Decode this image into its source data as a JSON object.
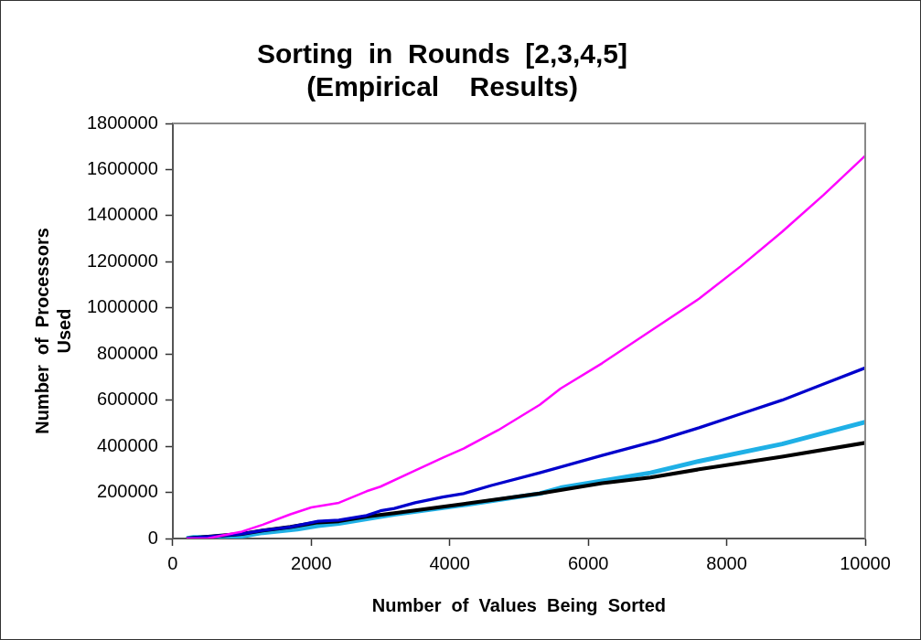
{
  "chart_data": {
    "type": "line",
    "title": [
      "Sorting  in  Rounds  [2,3,4,5]",
      "(Empirical    Results)"
    ],
    "xlabel": "Number  of  Values  Being  Sorted",
    "ylabel": [
      "Number  of  Processors",
      "Used"
    ],
    "xlim": [
      0,
      10000
    ],
    "xticks": [
      0,
      2000,
      4000,
      6000,
      8000,
      10000
    ],
    "ylim": [
      0,
      1800000
    ],
    "yticks": [
      0,
      200000,
      400000,
      600000,
      800000,
      1000000,
      1200000,
      1400000,
      1600000,
      1800000
    ],
    "grid": false,
    "legend": false,
    "marker": "none",
    "line_style": "solid",
    "series": [
      {
        "color": "#ff00ff",
        "x": [
          200,
          500,
          1000,
          1300,
          1700,
          2000,
          2400,
          2800,
          3000,
          3500,
          3900,
          4200,
          4700,
          5300,
          5600,
          6200,
          6900,
          7600,
          8200,
          8800,
          9400,
          10000
        ],
        "values": [
          0,
          0,
          30000,
          60000,
          105000,
          135000,
          155000,
          205000,
          225000,
          295000,
          350000,
          390000,
          470000,
          580000,
          650000,
          760000,
          900000,
          1040000,
          1180000,
          1330000,
          1490000,
          1660000
        ]
      },
      {
        "color": "#0000cc",
        "x": [
          200,
          1000,
          1300,
          1700,
          2100,
          2400,
          2800,
          3000,
          3200,
          3500,
          3900,
          4200,
          4600,
          5300,
          6200,
          7000,
          7600,
          8200,
          8800,
          9400,
          10000
        ],
        "values": [
          0,
          20000,
          35000,
          50000,
          75000,
          80000,
          100000,
          120000,
          130000,
          155000,
          180000,
          195000,
          230000,
          285000,
          360000,
          425000,
          480000,
          540000,
          600000,
          670000,
          740000
        ]
      },
      {
        "color": "#000000",
        "x": [
          200,
          1000,
          1300,
          1700,
          2100,
          2400,
          2800,
          3200,
          4200,
          5300,
          6200,
          6900,
          7600,
          8800,
          10000
        ],
        "values": [
          0,
          20000,
          35000,
          50000,
          70000,
          75000,
          95000,
          110000,
          150000,
          195000,
          240000,
          265000,
          300000,
          355000,
          415000
        ]
      },
      {
        "color": "#1fb0e6",
        "x": [
          200,
          300,
          500,
          1000,
          1300,
          1800,
          2100,
          2400,
          2800,
          3200,
          4200,
          5300,
          5600,
          6200,
          6900,
          7600,
          8800,
          10000
        ],
        "values": [
          0,
          5000,
          5000,
          10000,
          25000,
          40000,
          55000,
          65000,
          85000,
          105000,
          145000,
          195000,
          220000,
          250000,
          285000,
          335000,
          410000,
          505000
        ]
      }
    ]
  }
}
